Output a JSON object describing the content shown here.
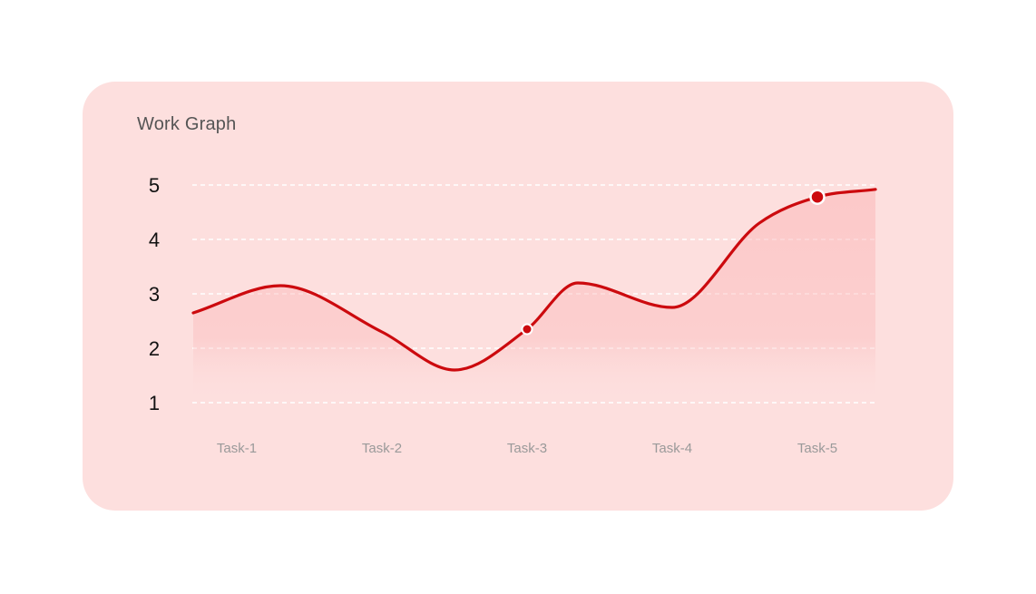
{
  "colors": {
    "background": "#ffffff",
    "card": "#fddfde",
    "line": "#cc0a0e",
    "grid": "#ffffff",
    "title": "#555555"
  },
  "chart_data": {
    "type": "area",
    "title": "Work Graph",
    "xlabel": "",
    "ylabel": "",
    "categories": [
      "Task-1",
      "Task-2",
      "Task-3",
      "Task-4",
      "Task-5"
    ],
    "yticks": [
      5,
      4,
      3,
      2,
      1
    ],
    "ylim": [
      1,
      5
    ],
    "grid": true,
    "curve_points": [
      {
        "x": 0.7,
        "y": 2.65
      },
      {
        "x": 1.3,
        "y": 3.15
      },
      {
        "x": 2.0,
        "y": 2.3
      },
      {
        "x": 2.5,
        "y": 1.6
      },
      {
        "x": 3.0,
        "y": 2.35
      },
      {
        "x": 3.35,
        "y": 3.2
      },
      {
        "x": 4.0,
        "y": 2.75
      },
      {
        "x": 4.6,
        "y": 4.3
      },
      {
        "x": 5.0,
        "y": 4.78
      },
      {
        "x": 5.4,
        "y": 4.92
      }
    ],
    "highlighted_points": [
      {
        "x": 3.0,
        "y": 2.35,
        "size": "small"
      },
      {
        "x": 5.0,
        "y": 4.78,
        "size": "large"
      }
    ]
  }
}
